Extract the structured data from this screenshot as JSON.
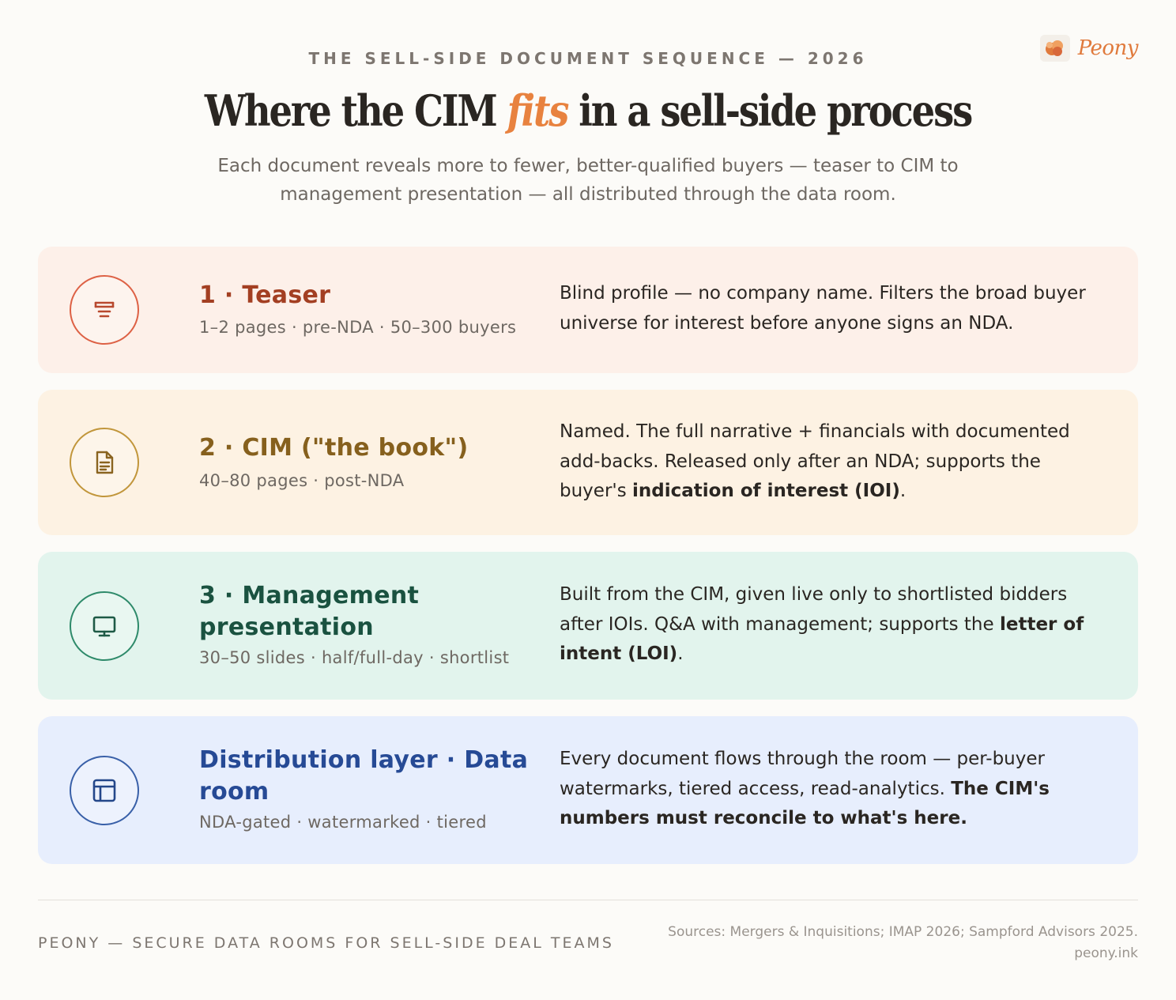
{
  "brand": {
    "name": "Peony",
    "accent_color": "#e8823f"
  },
  "header": {
    "eyebrow": "THE SELL-SIDE DOCUMENT SEQUENCE — 2026",
    "title_before": "Where the CIM ",
    "title_accent": "fits",
    "title_after": " in a sell-side process",
    "subtitle": "Each document reveals more to fewer, better-qualified buyers — teaser to CIM to management presentation — all distributed through the data room."
  },
  "cards": [
    {
      "icon": "teaser-icon",
      "heading": "1 · Teaser",
      "meta": "1–2 pages · pre-NDA · 50–300 buyers",
      "desc": "Blind profile — no company name. Filters the broad buyer universe for interest before anyone signs an NDA.",
      "desc_bold": "",
      "desc_tail": "",
      "color": "#a33f22",
      "background": "#fdf0e9"
    },
    {
      "icon": "document-icon",
      "heading": "2 · CIM (\"the book\")",
      "meta": "40–80 pages · post-NDA",
      "desc": "Named. The full narrative + financials with documented add-backs. Released only after an NDA; supports the buyer's ",
      "desc_bold": "indication of interest (IOI)",
      "desc_tail": ".",
      "color": "#86601d",
      "background": "#fdf2e3"
    },
    {
      "icon": "monitor-icon",
      "heading": "3 · Management presentation",
      "meta": "30–50 slides · half/full-day · shortlist",
      "desc": "Built from the CIM, given live only to shortlisted bidders after IOIs. Q&A with management; supports the ",
      "desc_bold": "letter of intent (LOI)",
      "desc_tail": ".",
      "color": "#1a5240",
      "background": "#e2f4ed"
    },
    {
      "icon": "layout-icon",
      "heading": "Distribution layer · Data room",
      "meta": "NDA-gated · watermarked · tiered",
      "desc": "Every document flows through the room — per-buyer watermarks, tiered access, read-analytics. ",
      "desc_bold": "The CIM's numbers must reconcile to what's here.",
      "desc_tail": "",
      "color": "#264a95",
      "background": "#e7eefd"
    }
  ],
  "footer": {
    "tagline": "PEONY — SECURE DATA ROOMS FOR SELL-SIDE DEAL TEAMS",
    "sources": "Sources: Mergers & Inquisitions; IMAP 2026; Sampford Advisors 2025.",
    "url": "peony.ink"
  }
}
